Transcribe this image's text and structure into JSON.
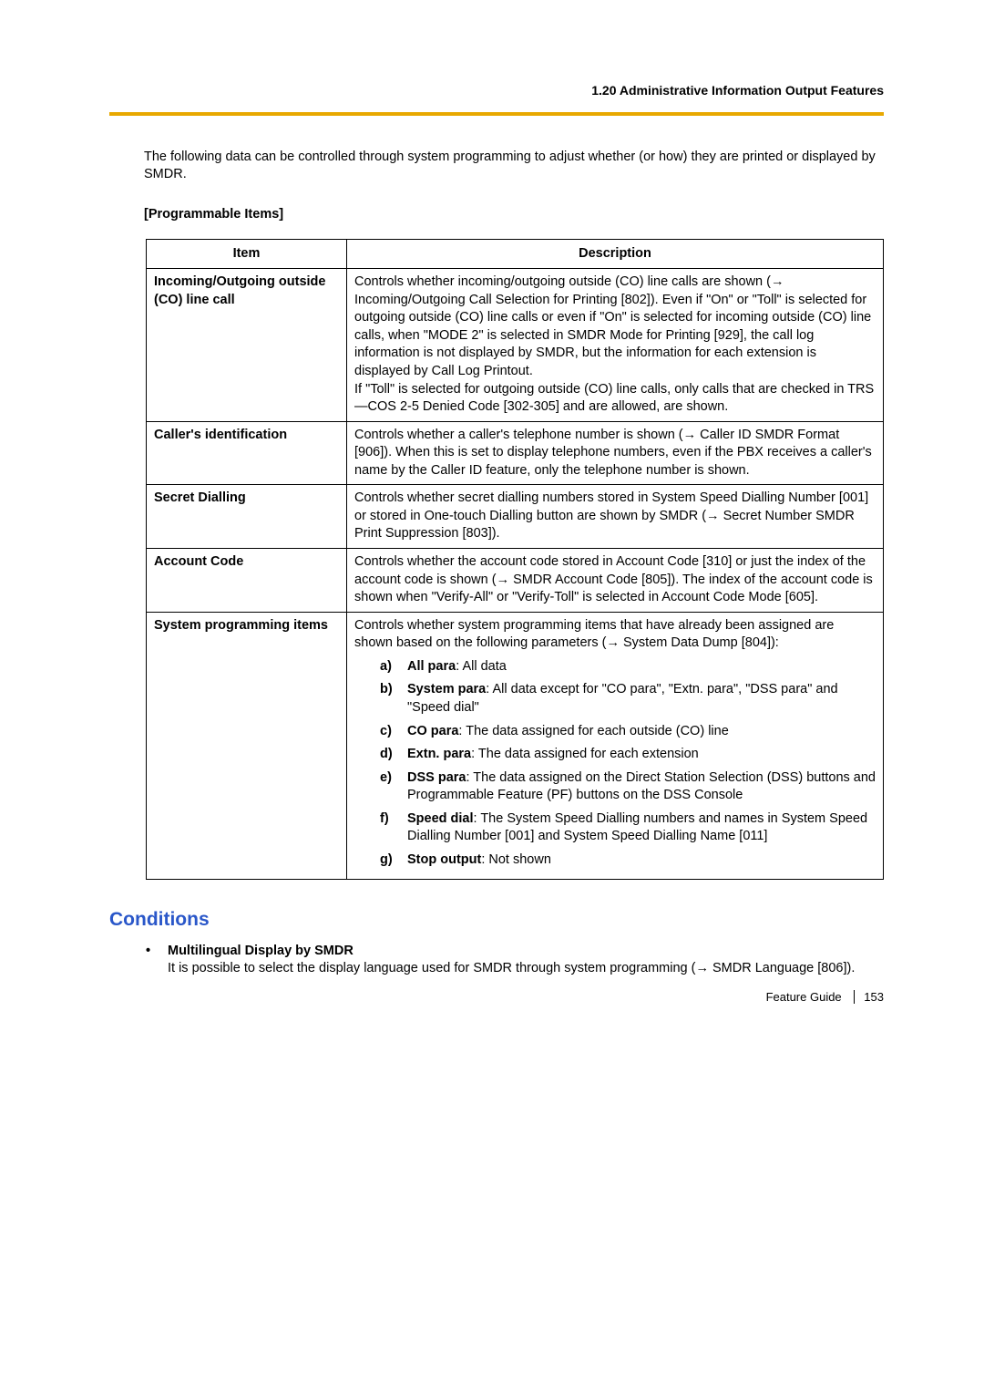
{
  "header": "1.20 Administrative Information Output Features",
  "intro": "The following data can be controlled through system programming to adjust whether (or how) they are printed or displayed by SMDR.",
  "subhead": "[Programmable Items]",
  "table": {
    "col_item": "Item",
    "col_desc": "Description",
    "rows": {
      "r0": {
        "item": "Incoming/Outgoing outside (CO) line call",
        "desc_a": "Controls whether incoming/outgoing outside (CO) line calls are shown (",
        "desc_b": " Incoming/Outgoing Call Selection for Printing [802]). Even if \"On\" or \"Toll\" is selected for outgoing outside (CO) line calls or even if \"On\" is selected for incoming outside (CO) line calls, when \"MODE 2\" is selected in SMDR Mode for Printing [929], the call log information is not displayed by SMDR, but the information for each extension is displayed by Call Log Printout.",
        "desc_c": "If \"Toll\" is selected for outgoing outside (CO) line calls, only calls that are checked in TRS—COS 2-5 Denied Code [302-305] and are allowed, are shown."
      },
      "r1": {
        "item": "Caller's identification",
        "desc_a": "Controls whether a caller's telephone number is shown (",
        "desc_b": " Caller ID SMDR Format [906]). When this is set to display telephone numbers, even if the PBX receives a caller's name by the Caller ID feature, only the telephone number is shown."
      },
      "r2": {
        "item": "Secret Dialling",
        "desc_a": "Controls whether secret dialling numbers stored in System Speed Dialling Number [001] or stored in One-touch Dialling button are shown by SMDR (",
        "desc_b": " Secret Number SMDR Print Suppression [803])."
      },
      "r3": {
        "item": "Account Code",
        "desc_a": "Controls whether the account code stored in Account Code [310] or just the index of the account code is shown (",
        "desc_b": " SMDR Account Code [805]). The index of the account code is shown when \"Verify-All\" or \"Verify-Toll\" is selected in Account Code Mode [605]."
      },
      "r4": {
        "item": "System programming items",
        "desc_a": "Controls whether system programming items that have already been assigned are shown based on the following parameters (",
        "desc_b": " System Data Dump [804]):",
        "list": {
          "a": {
            "letter": "a)",
            "label": "All para",
            "text": ": All data"
          },
          "b": {
            "letter": "b)",
            "label": "System para",
            "text": ": All data except for \"CO para\", \"Extn. para\", \"DSS para\" and \"Speed dial\""
          },
          "c": {
            "letter": "c)",
            "label": "CO para",
            "text": ": The data assigned for each outside (CO) line"
          },
          "d": {
            "letter": "d)",
            "label": "Extn. para",
            "text": ": The data assigned for each extension"
          },
          "e": {
            "letter": "e)",
            "label": "DSS para",
            "text": ": The data assigned on the Direct Station Selection (DSS) buttons and Programmable Feature (PF) buttons on the DSS Console"
          },
          "f": {
            "letter": "f)",
            "label": "Speed dial",
            "text": ": The System Speed Dialling numbers and names in System Speed Dialling Number [001] and System Speed Dialling Name [011]"
          },
          "g": {
            "letter": "g)",
            "label": "Stop output",
            "text": ": Not shown"
          }
        }
      }
    }
  },
  "conditions_title": "Conditions",
  "conditions": {
    "c0": {
      "title": "Multilingual Display by SMDR",
      "text_a": "It is possible to select the display language used for SMDR through system programming (",
      "text_b": " SMDR Language [806])."
    }
  },
  "footer": {
    "doc": "Feature Guide",
    "page": "153"
  },
  "arrow": "→"
}
